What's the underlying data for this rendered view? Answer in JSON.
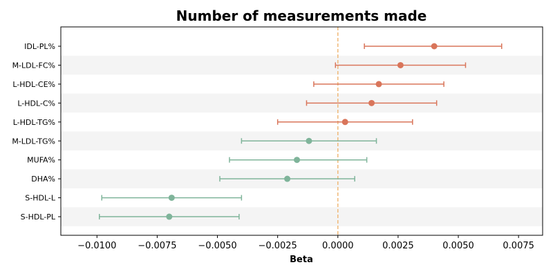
{
  "chart_data": {
    "type": "forest",
    "title": "Number of measurements made",
    "xlabel": "Beta",
    "ylabel": "",
    "xlim": [
      -0.0115,
      0.0085
    ],
    "xticks": [
      -0.01,
      -0.0075,
      -0.005,
      -0.0025,
      0.0,
      0.0025,
      0.005,
      0.0075
    ],
    "xtick_labels": [
      "−0.0100",
      "−0.0075",
      "−0.0050",
      "−0.0025",
      "0.0000",
      "0.0025",
      "0.0050",
      "0.0075"
    ],
    "reference_line": 0.0,
    "grid": false,
    "alternating_row_bands": true,
    "colors": {
      "positive": "#d9755a",
      "negative": "#7fb49a",
      "reference_line": "#f0b878",
      "band": "#f4f4f4"
    },
    "categories": [
      "IDL-PL%",
      "M-LDL-FC%",
      "L-HDL-CE%",
      "L-HDL-C%",
      "L-HDL-TG%",
      "M-LDL-TG%",
      "MUFA%",
      "DHA%",
      "S-HDL-L",
      "S-HDL-PL"
    ],
    "beta": [
      0.004,
      0.0026,
      0.0017,
      0.0014,
      0.0003,
      -0.0012,
      -0.0017,
      -0.0021,
      -0.0069,
      -0.007
    ],
    "ci_low": [
      0.0011,
      -0.0001,
      -0.001,
      -0.0013,
      -0.0025,
      -0.004,
      -0.0045,
      -0.0049,
      -0.0098,
      -0.0099
    ],
    "ci_high": [
      0.0068,
      0.0053,
      0.0044,
      0.0041,
      0.0031,
      0.0016,
      0.0012,
      0.0007,
      -0.004,
      -0.0041
    ]
  }
}
